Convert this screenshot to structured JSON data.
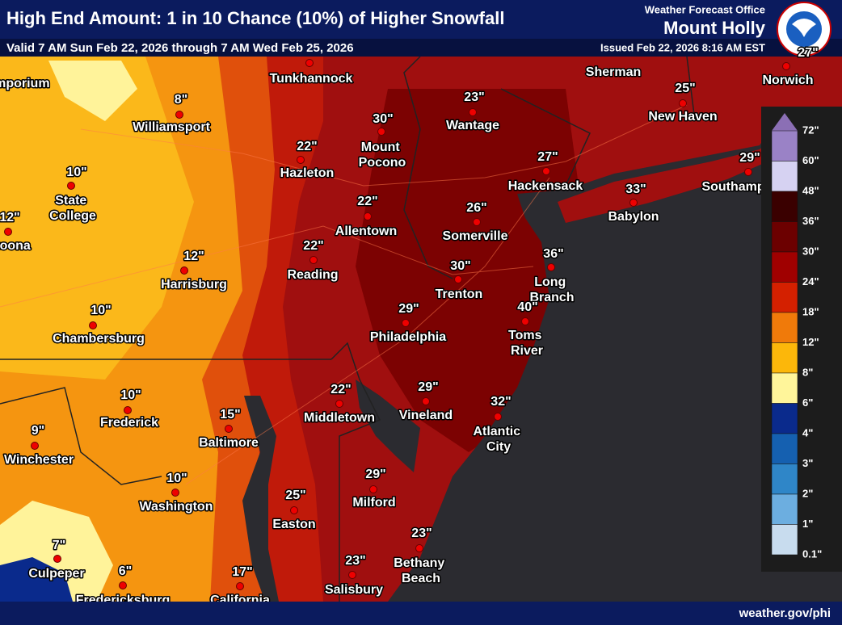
{
  "header": {
    "title": "High End Amount: 1 in 10 Chance (10%) of Higher Snowfall",
    "valid": "Valid 7 AM Sun Feb 22, 2026 through 7 AM Wed Feb 25, 2026",
    "office_label": "Weather Forecast Office",
    "office_name": "Mount Holly",
    "issued": "Issued Feb 22, 2026 8:16 AM EST"
  },
  "footer": {
    "url": "weather.gov/phi"
  },
  "cities": [
    {
      "name": "Emporium"
    },
    {
      "name": "Tunkhannock"
    },
    {
      "name": "Williamsport",
      "amount": "8\""
    },
    {
      "name": "State College",
      "amount": "10\""
    },
    {
      "name": "Altoona",
      "amount": "12\""
    },
    {
      "name": "Harrisburg",
      "amount": "12\""
    },
    {
      "name": "Chambersburg",
      "amount": "10\""
    },
    {
      "name": "Hazleton",
      "amount": "22\""
    },
    {
      "name": "Mount Pocono",
      "amount": "30\""
    },
    {
      "name": "Allentown",
      "amount": "22\""
    },
    {
      "name": "Reading",
      "amount": "22\""
    },
    {
      "name": "Wantage",
      "amount": "23\""
    },
    {
      "name": "Sherman"
    },
    {
      "name": "New Haven",
      "amount": "25\""
    },
    {
      "name": "Norwich",
      "amount": "27\""
    },
    {
      "name": "Hackensack",
      "amount": "27\""
    },
    {
      "name": "Babylon",
      "amount": "33\""
    },
    {
      "name": "Southampton",
      "amount": "29\""
    },
    {
      "name": "Somerville",
      "amount": "26\""
    },
    {
      "name": "Long Branch",
      "amount": "36\""
    },
    {
      "name": "Trenton",
      "amount": "30\""
    },
    {
      "name": "Toms River",
      "amount": "40\""
    },
    {
      "name": "Philadelphia",
      "amount": "29\""
    },
    {
      "name": "Vineland",
      "amount": "29\""
    },
    {
      "name": "Middletown",
      "amount": "22\""
    },
    {
      "name": "Atlantic City",
      "amount": "32\""
    },
    {
      "name": "Frederick",
      "amount": "10\""
    },
    {
      "name": "Baltimore",
      "amount": "15\""
    },
    {
      "name": "Winchester",
      "amount": "9\""
    },
    {
      "name": "Washington",
      "amount": "10\""
    },
    {
      "name": "Milford",
      "amount": "29\""
    },
    {
      "name": "Easton",
      "amount": "25\""
    },
    {
      "name": "Bethany Beach",
      "amount": "23\""
    },
    {
      "name": "Culpeper",
      "amount": "7\""
    },
    {
      "name": "Salisbury",
      "amount": "23\""
    },
    {
      "name": "Fredericksburg",
      "amount": "6\""
    },
    {
      "name": "California",
      "amount": "17\""
    }
  ],
  "legend": {
    "labels": [
      "72\"",
      "60\"",
      "48\"",
      "36\"",
      "30\"",
      "24\"",
      "18\"",
      "12\"",
      "8\"",
      "6\"",
      "4\"",
      "3\"",
      "2\"",
      "1\"",
      "0.1\""
    ],
    "colors": [
      "#9a82c6",
      "#d6d2f2",
      "#3a0000",
      "#6c0000",
      "#a00000",
      "#d42000",
      "#f07a0a",
      "#fcb70a",
      "#fff59a",
      "#0a2a8c",
      "#1560b0",
      "#2f86c8",
      "#6caee0",
      "#c8dcee"
    ]
  }
}
